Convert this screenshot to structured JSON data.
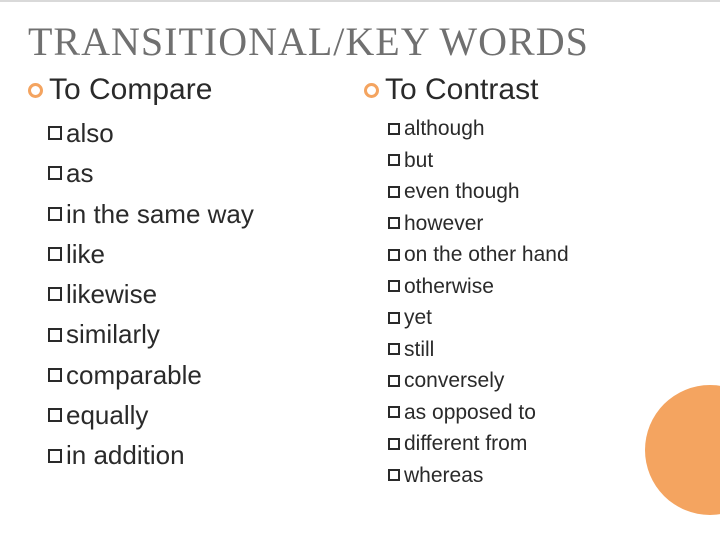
{
  "title": "TRANSITIONAL/KEY WORDS",
  "columns": {
    "left": {
      "heading": "To Compare",
      "items": [
        "also",
        "as",
        "in the same way",
        "like",
        "likewise",
        "similarly",
        "comparable",
        "equally",
        "in addition"
      ]
    },
    "right": {
      "heading": "To Contrast",
      "items": [
        "although",
        "but",
        "even though",
        "however",
        "on the other hand",
        "otherwise",
        "yet",
        "still",
        "conversely",
        "as opposed to",
        "different from",
        "whereas"
      ]
    }
  },
  "colors": {
    "accent": "#f4a460",
    "text": "#2a2a2a",
    "title": "#707070",
    "background": "#ffffff"
  }
}
